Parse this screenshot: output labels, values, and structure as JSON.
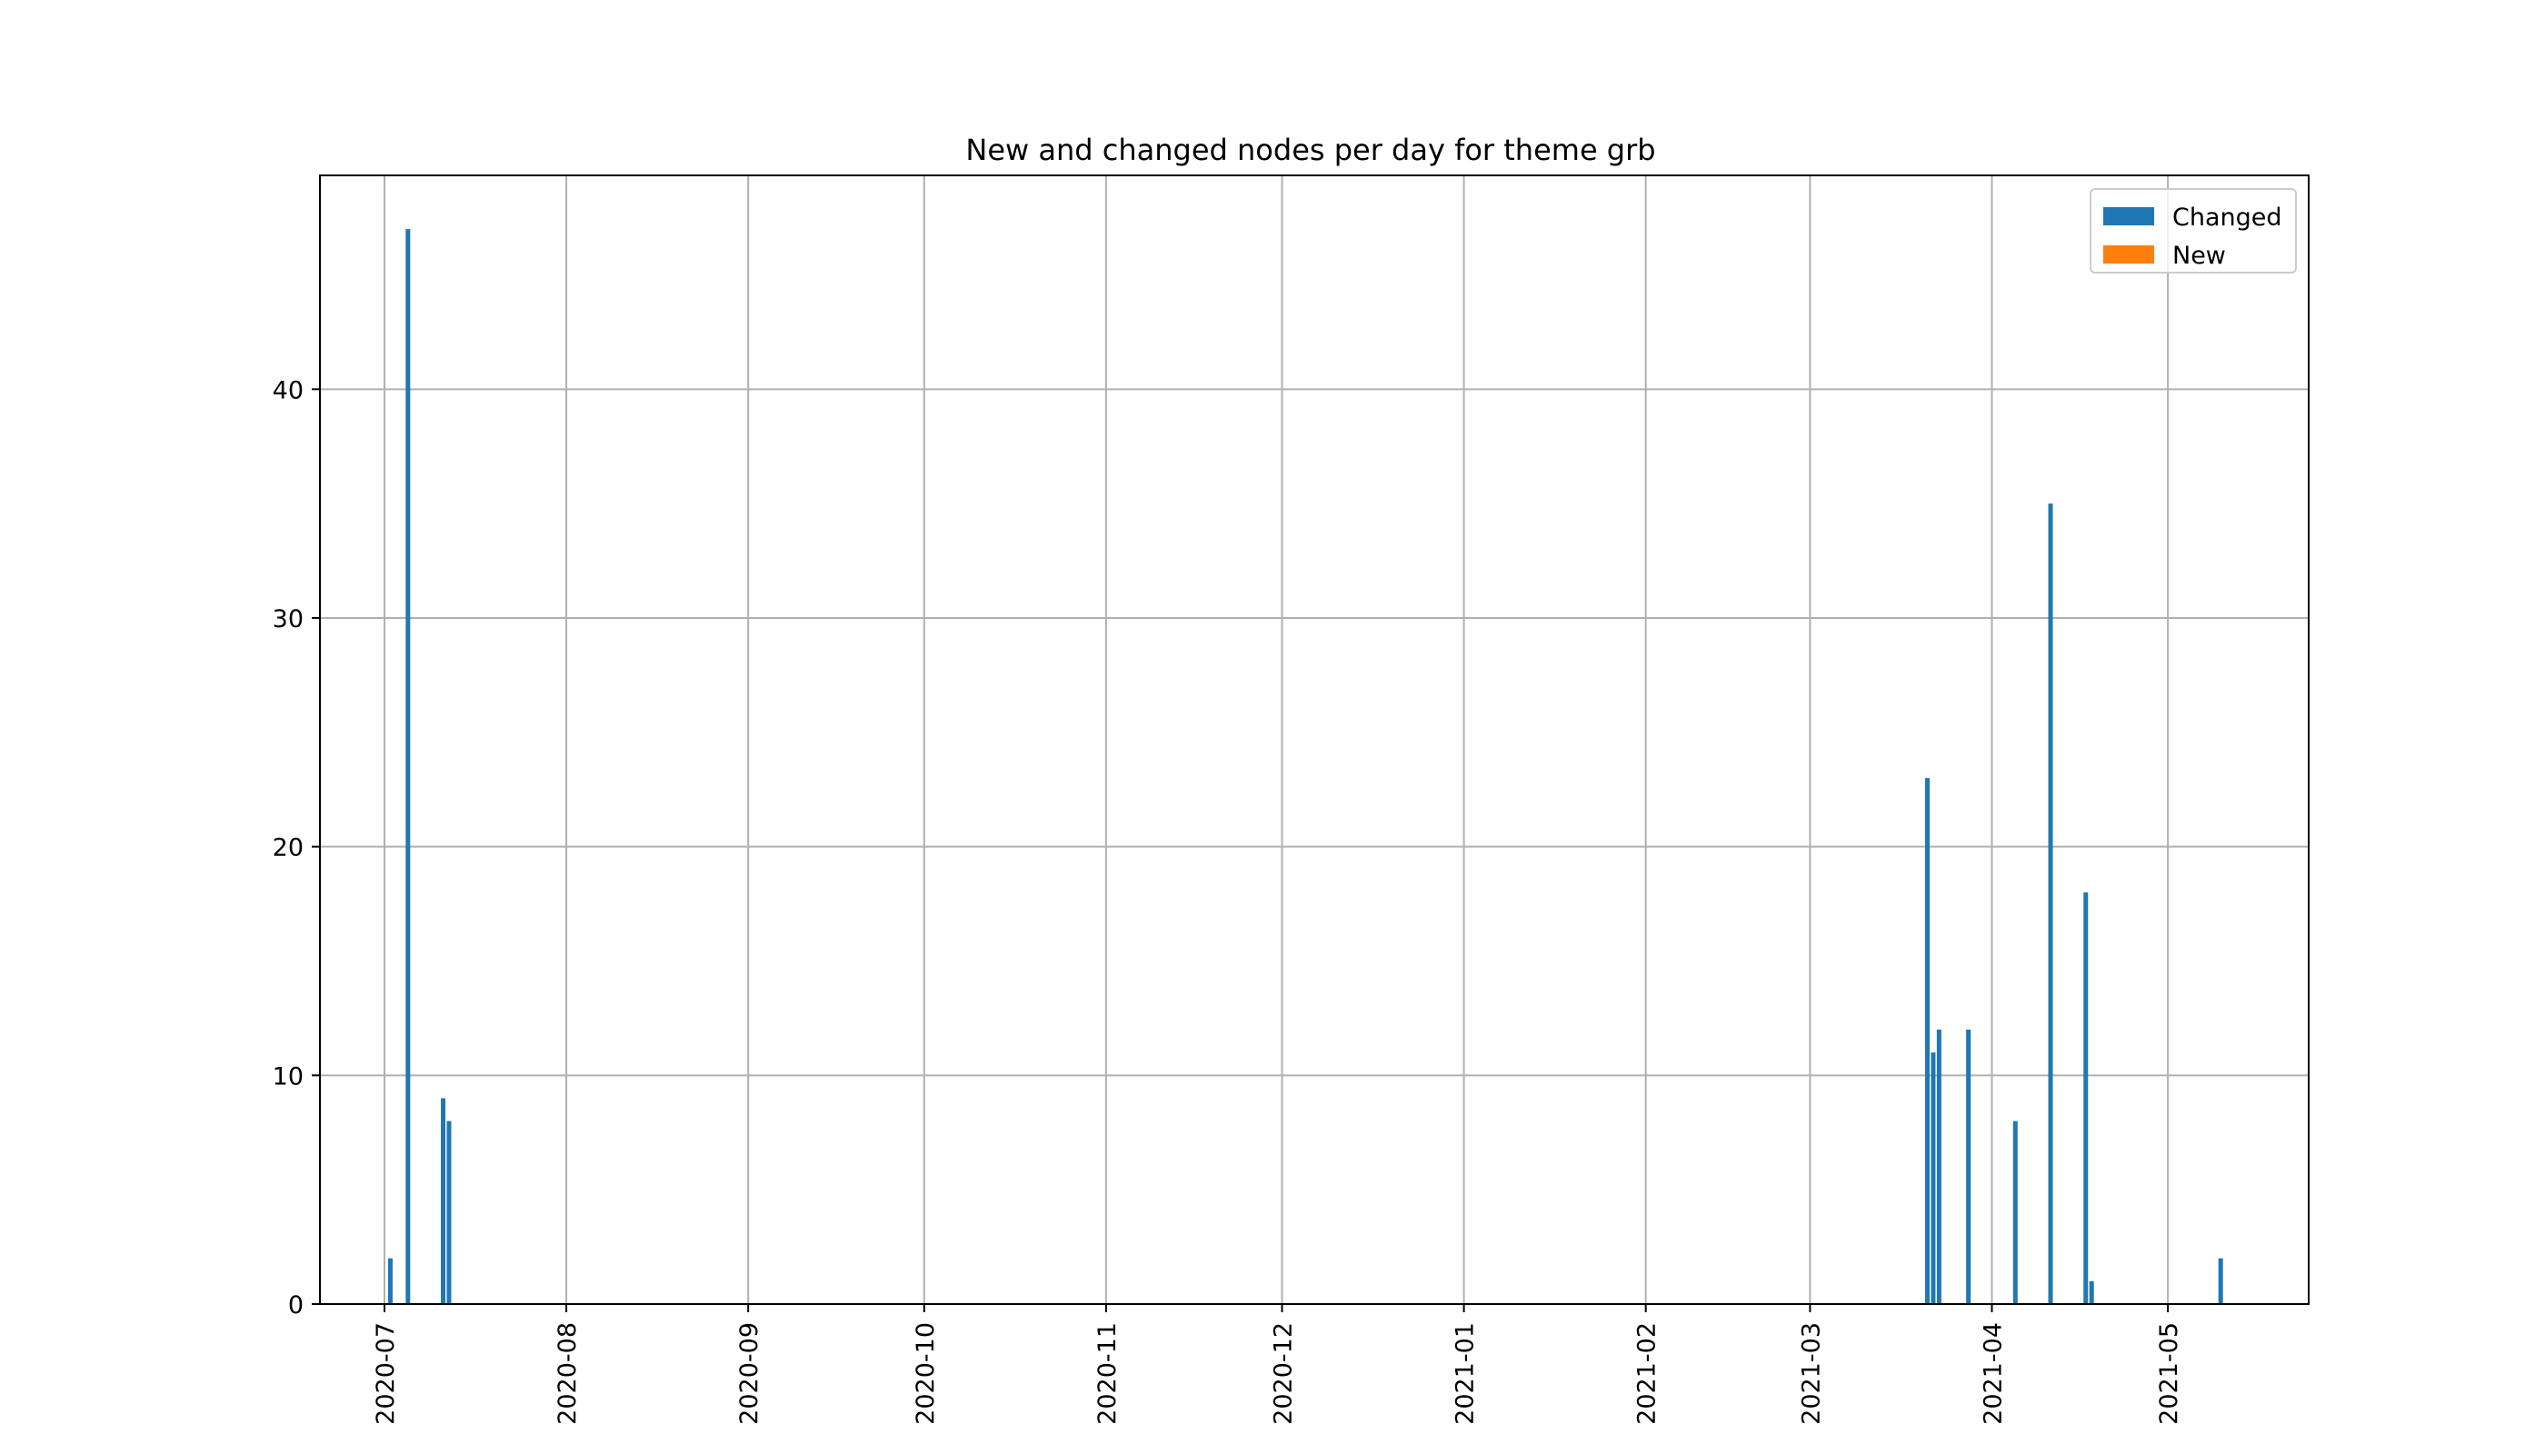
{
  "chart_data": {
    "type": "bar",
    "title": "New and changed nodes per day for theme grb",
    "xlabel": "",
    "ylabel": "",
    "x_axis": "date",
    "xlim": [
      "2020-06-20",
      "2021-05-25"
    ],
    "ylim": [
      0,
      49.35
    ],
    "grid": true,
    "legend_position": "top-right",
    "x_ticks": [
      "2020-07",
      "2020-08",
      "2020-09",
      "2020-10",
      "2020-11",
      "2020-12",
      "2021-01",
      "2021-02",
      "2021-03",
      "2021-04",
      "2021-05"
    ],
    "y_ticks": [
      0,
      10,
      20,
      30,
      40
    ],
    "series": [
      {
        "name": "Changed",
        "color": "#1f77b4",
        "points": [
          {
            "date": "2020-07-02",
            "value": 2
          },
          {
            "date": "2020-07-05",
            "value": 47
          },
          {
            "date": "2020-07-11",
            "value": 9
          },
          {
            "date": "2020-07-12",
            "value": 8
          },
          {
            "date": "2021-03-21",
            "value": 23
          },
          {
            "date": "2021-03-22",
            "value": 11
          },
          {
            "date": "2021-03-23",
            "value": 12
          },
          {
            "date": "2021-03-28",
            "value": 12
          },
          {
            "date": "2021-04-05",
            "value": 8
          },
          {
            "date": "2021-04-11",
            "value": 35
          },
          {
            "date": "2021-04-17",
            "value": 18
          },
          {
            "date": "2021-04-18",
            "value": 1
          },
          {
            "date": "2021-05-10",
            "value": 2
          }
        ]
      },
      {
        "name": "New",
        "color": "#ff7f0e",
        "points": []
      }
    ]
  }
}
